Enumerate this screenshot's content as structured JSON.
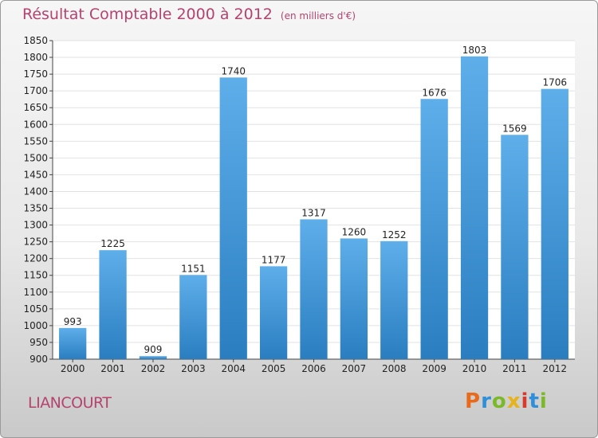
{
  "header": {
    "title": "Résultat Comptable 2000 à 2012",
    "unit": "(en milliers d'€)"
  },
  "footer": {
    "city": "LIANCOURT",
    "logo_letters": [
      {
        "ch": "P",
        "color": "#e86a1a"
      },
      {
        "ch": "r",
        "color": "#2f8fd8"
      },
      {
        "ch": "o",
        "color": "#7bb928"
      },
      {
        "ch": "x",
        "color": "#e8b21a"
      },
      {
        "ch": "i",
        "color": "#d9382e"
      },
      {
        "ch": "t",
        "color": "#2f8fd8"
      },
      {
        "ch": "i",
        "color": "#7bb928"
      }
    ]
  },
  "colors": {
    "accent": "#b5436e",
    "bar_light": "#5eaeea",
    "bar_dark": "#2a7ec0"
  },
  "chart_data": {
    "type": "bar",
    "title": "Résultat Comptable 2000 à 2012",
    "subtitle": "(en milliers d'€)",
    "categories": [
      "2000",
      "2001",
      "2002",
      "2003",
      "2004",
      "2005",
      "2006",
      "2007",
      "2008",
      "2009",
      "2010",
      "2011",
      "2012"
    ],
    "values": [
      993,
      1225,
      909,
      1151,
      1740,
      1177,
      1317,
      1260,
      1252,
      1676,
      1803,
      1569,
      1706
    ],
    "ylim": [
      900,
      1850
    ],
    "ytick_step": 50,
    "grid": true,
    "xlabel": "",
    "ylabel": ""
  }
}
